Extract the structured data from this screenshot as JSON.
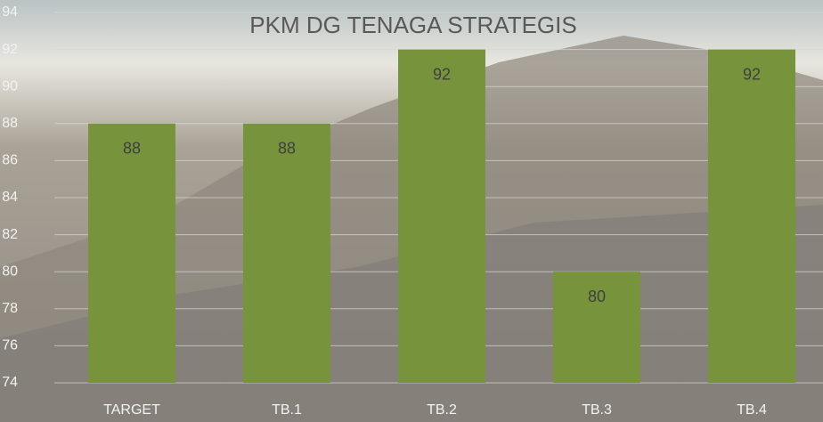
{
  "chart_data": {
    "type": "bar",
    "title": "PKM DG TENAGA STRATEGIS",
    "categories": [
      "TARGET",
      "TB.1",
      "TB.2",
      "TB.3",
      "TB.4"
    ],
    "values": [
      88,
      88,
      92,
      80,
      92
    ],
    "color": "#77933c",
    "ylim": [
      74,
      94
    ],
    "yticks": [
      74,
      76,
      78,
      80,
      82,
      84,
      86,
      88,
      90,
      92,
      94
    ],
    "grid": true
  }
}
